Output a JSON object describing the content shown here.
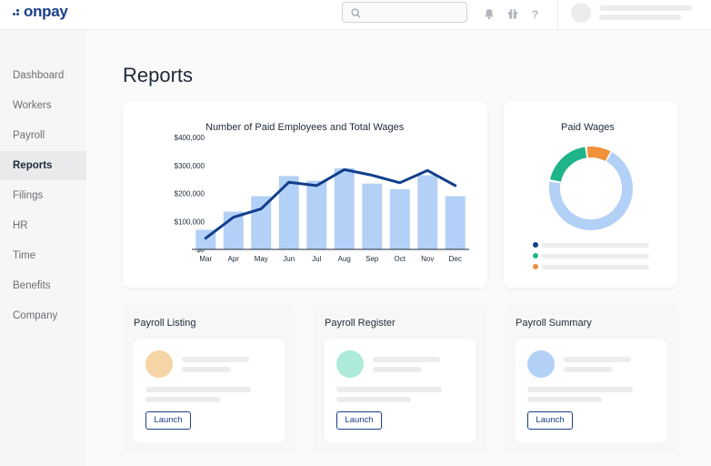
{
  "app": {
    "logo_text": "onpay"
  },
  "header": {
    "search_placeholder": ""
  },
  "sidebar": {
    "items": [
      {
        "label": "Dashboard"
      },
      {
        "label": "Workers"
      },
      {
        "label": "Payroll"
      },
      {
        "label": "Reports",
        "active": true
      },
      {
        "label": "Filings"
      },
      {
        "label": "HR"
      },
      {
        "label": "Time"
      },
      {
        "label": "Benefits"
      },
      {
        "label": "Company"
      }
    ]
  },
  "page": {
    "title": "Reports"
  },
  "chart_data": [
    {
      "type": "bar",
      "title": "Number of Paid Employees and Total Wages",
      "categories": [
        "Mar",
        "Apr",
        "May",
        "Jun",
        "Jul",
        "Aug",
        "Sep",
        "Oct",
        "Nov",
        "Dec"
      ],
      "series": [
        {
          "name": "Total Wages",
          "type": "bar",
          "values": [
            70000,
            135000,
            190000,
            262000,
            245000,
            290000,
            235000,
            215000,
            265000,
            190000
          ]
        },
        {
          "name": "Paid Employees",
          "type": "line",
          "values": [
            40000,
            115000,
            145000,
            240000,
            228000,
            285000,
            265000,
            238000,
            282000,
            228000
          ]
        }
      ],
      "yticks": [
        "$0",
        "$100,000",
        "$200,000",
        "$300,000",
        "$400,000"
      ],
      "ylim": [
        0,
        400000
      ],
      "xlabel": "",
      "ylabel": "",
      "colors": {
        "bar": "#b3d0f7",
        "line": "#123f8c"
      }
    },
    {
      "type": "pie",
      "title": "Paid Wages",
      "labels": [
        "",
        "",
        ""
      ],
      "values": [
        70,
        20,
        10
      ],
      "colors": [
        "#b3d0f7",
        "#1fb489",
        "#f0913a"
      ]
    }
  ],
  "donut_legend": [
    {
      "color": "#123f8c"
    },
    {
      "color": "#1fb489"
    },
    {
      "color": "#f0913a"
    }
  ],
  "reports": [
    {
      "title": "Payroll Listing",
      "circle_color": "#f5d4a6",
      "launch_label": "Launch"
    },
    {
      "title": "Payroll Register",
      "circle_color": "#aeead9",
      "launch_label": "Launch"
    },
    {
      "title": "Payroll Summary",
      "circle_color": "#b3d0f7",
      "launch_label": "Launch"
    }
  ]
}
